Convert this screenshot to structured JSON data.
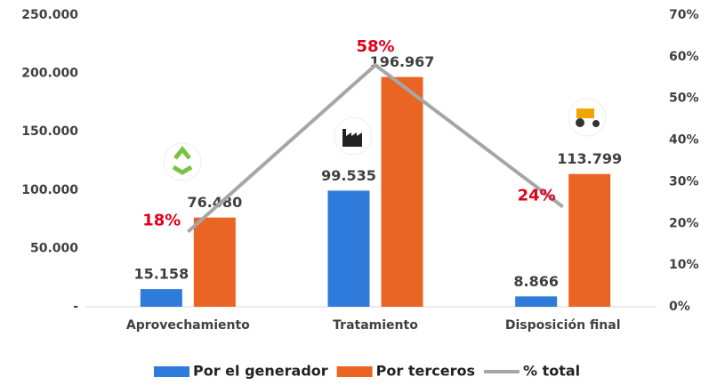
{
  "chart_data": {
    "type": "bar",
    "categories": [
      "Aprovechamiento",
      "Tratamiento",
      "Disposición final"
    ],
    "series": [
      {
        "name": "Por el generador",
        "color": "#2e7bdc",
        "values": [
          15158,
          99535,
          8866
        ],
        "value_labels": [
          "15.158",
          "99.535",
          "8.866"
        ]
      },
      {
        "name": "Por terceros",
        "color": "#ea6424",
        "values": [
          76480,
          196967,
          113799
        ],
        "value_labels": [
          "76.480",
          "196.967",
          "113.799"
        ]
      },
      {
        "name": "% total",
        "type": "line",
        "axis": "y2",
        "color": "#a6a6a6",
        "label_color": "#e0001b",
        "values": [
          18,
          58,
          24
        ],
        "value_labels": [
          "18%",
          "58%",
          "24%"
        ]
      }
    ],
    "ylim": [
      0,
      250000
    ],
    "yticks": [
      {
        "value": 0,
        "label": "-"
      },
      {
        "value": 50000,
        "label": "50.000"
      },
      {
        "value": 100000,
        "label": "100.000"
      },
      {
        "value": 150000,
        "label": "150.000"
      },
      {
        "value": 200000,
        "label": "200.000"
      },
      {
        "value": 250000,
        "label": "250.000"
      }
    ],
    "y2lim": [
      0,
      70
    ],
    "y2ticks": [
      {
        "value": 0,
        "label": "0%"
      },
      {
        "value": 10,
        "label": "10%"
      },
      {
        "value": 20,
        "label": "20%"
      },
      {
        "value": 30,
        "label": "30%"
      },
      {
        "value": 40,
        "label": "40%"
      },
      {
        "value": 50,
        "label": "50%"
      },
      {
        "value": 60,
        "label": "60%"
      },
      {
        "value": 70,
        "label": "70%"
      }
    ],
    "grid": false,
    "legend": "bottom"
  }
}
